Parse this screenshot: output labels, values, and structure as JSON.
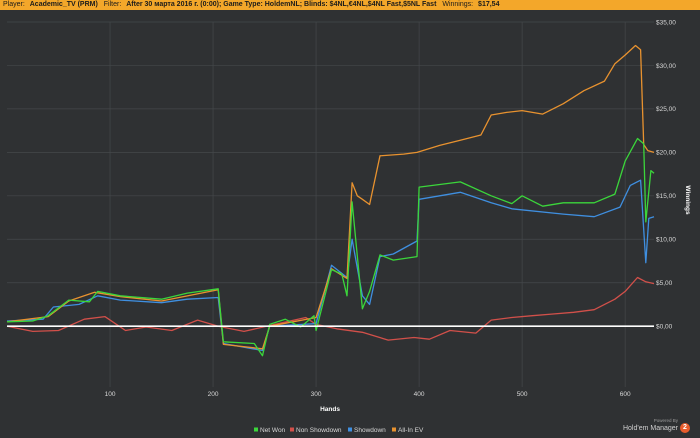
{
  "header": {
    "player_label": "Player:",
    "player_value": "Academic_TV (PRM)",
    "filter_label": "Filter:",
    "filter_value": "After 30 марта 2016 г. (0:00); Game Type: HoldemNL; Blinds: $4NL,€4NL,$4NL Fast,$5NL Fast",
    "winnings_label": "Winnings:",
    "winnings_value": "$17,54"
  },
  "brand": {
    "powered_by": "Powered By",
    "name": "Hold'em Manager",
    "badge": "2"
  },
  "colors": {
    "background": "#2f3133",
    "header": "#f3a72a",
    "grid": "#45484b",
    "net_won": "#3bd63b",
    "non_showdown": "#d2504a",
    "showdown": "#3f8fe0",
    "all_in_ev": "#e8922f",
    "zero_line": "#ffffff"
  },
  "chart_data": {
    "type": "line",
    "xlabel": "Hands",
    "ylabel": "Winnings",
    "xlim": [
      0,
      628
    ],
    "ylim": [
      -7,
      35
    ],
    "x_ticks": [
      100,
      200,
      300,
      400,
      500,
      600
    ],
    "y_ticks": [
      {
        "value": 0,
        "label": "$0,00"
      },
      {
        "value": 5,
        "label": "$5,00"
      },
      {
        "value": 10,
        "label": "$10,00"
      },
      {
        "value": 15,
        "label": "$15,00"
      },
      {
        "value": 20,
        "label": "$20,00"
      },
      {
        "value": 25,
        "label": "$25,00"
      },
      {
        "value": 30,
        "label": "$30,00"
      },
      {
        "value": 35,
        "label": "$35,00"
      }
    ],
    "legend_position": "bottom-center",
    "grid": true,
    "series": [
      {
        "name": "Net Won",
        "color": "#3bd63b",
        "points": [
          [
            0,
            0.5
          ],
          [
            25,
            0.6
          ],
          [
            40,
            1.2
          ],
          [
            60,
            3.0
          ],
          [
            80,
            2.8
          ],
          [
            88,
            4.0
          ],
          [
            110,
            3.5
          ],
          [
            150,
            3.1
          ],
          [
            175,
            3.8
          ],
          [
            205,
            4.3
          ],
          [
            210,
            -1.8
          ],
          [
            240,
            -2.0
          ],
          [
            248,
            -3.4
          ],
          [
            255,
            0.2
          ],
          [
            270,
            0.8
          ],
          [
            285,
            -0.1
          ],
          [
            298,
            1.2
          ],
          [
            300,
            -0.5
          ],
          [
            315,
            6.5
          ],
          [
            325,
            6.0
          ],
          [
            330,
            3.5
          ],
          [
            335,
            14.3
          ],
          [
            345,
            2.0
          ],
          [
            352,
            4.0
          ],
          [
            362,
            8.2
          ],
          [
            375,
            7.6
          ],
          [
            398,
            8.0
          ],
          [
            400,
            16.0
          ],
          [
            440,
            16.6
          ],
          [
            470,
            15.0
          ],
          [
            490,
            14.1
          ],
          [
            500,
            15.0
          ],
          [
            520,
            13.8
          ],
          [
            540,
            14.2
          ],
          [
            570,
            14.2
          ],
          [
            590,
            15.2
          ],
          [
            600,
            19.0
          ],
          [
            612,
            21.6
          ],
          [
            618,
            21.0
          ],
          [
            620,
            12.0
          ],
          [
            625,
            17.9
          ],
          [
            628,
            17.6
          ]
        ]
      },
      {
        "name": "Non Showdown",
        "color": "#d2504a",
        "points": [
          [
            0,
            0.0
          ],
          [
            25,
            -0.6
          ],
          [
            50,
            -0.5
          ],
          [
            75,
            0.8
          ],
          [
            95,
            1.1
          ],
          [
            115,
            -0.5
          ],
          [
            135,
            -0.1
          ],
          [
            160,
            -0.5
          ],
          [
            185,
            0.7
          ],
          [
            205,
            0.0
          ],
          [
            230,
            -0.6
          ],
          [
            260,
            0.2
          ],
          [
            290,
            1.0
          ],
          [
            300,
            0.2
          ],
          [
            320,
            -0.3
          ],
          [
            345,
            -0.7
          ],
          [
            370,
            -1.6
          ],
          [
            395,
            -1.3
          ],
          [
            410,
            -1.5
          ],
          [
            430,
            -0.5
          ],
          [
            455,
            -0.8
          ],
          [
            470,
            0.7
          ],
          [
            490,
            1.0
          ],
          [
            510,
            1.2
          ],
          [
            530,
            1.4
          ],
          [
            550,
            1.6
          ],
          [
            570,
            1.9
          ],
          [
            590,
            3.1
          ],
          [
            600,
            4.0
          ],
          [
            612,
            5.6
          ],
          [
            620,
            5.1
          ],
          [
            628,
            4.9
          ]
        ]
      },
      {
        "name": "Showdown",
        "color": "#3f8fe0",
        "points": [
          [
            0,
            0.6
          ],
          [
            35,
            0.8
          ],
          [
            45,
            2.2
          ],
          [
            70,
            2.5
          ],
          [
            88,
            3.5
          ],
          [
            110,
            3.0
          ],
          [
            150,
            2.7
          ],
          [
            175,
            3.1
          ],
          [
            205,
            3.3
          ],
          [
            210,
            -2.0
          ],
          [
            248,
            -2.8
          ],
          [
            255,
            0.0
          ],
          [
            300,
            0.3
          ],
          [
            315,
            7.0
          ],
          [
            330,
            5.6
          ],
          [
            335,
            10.0
          ],
          [
            345,
            3.5
          ],
          [
            352,
            2.5
          ],
          [
            362,
            8.0
          ],
          [
            375,
            8.3
          ],
          [
            398,
            9.8
          ],
          [
            400,
            14.6
          ],
          [
            440,
            15.4
          ],
          [
            470,
            14.2
          ],
          [
            490,
            13.5
          ],
          [
            540,
            12.9
          ],
          [
            570,
            12.6
          ],
          [
            595,
            13.7
          ],
          [
            605,
            16.2
          ],
          [
            615,
            16.8
          ],
          [
            620,
            7.3
          ],
          [
            623,
            12.4
          ],
          [
            628,
            12.6
          ]
        ]
      },
      {
        "name": "All-In EV",
        "color": "#e8922f",
        "points": [
          [
            0,
            0.5
          ],
          [
            40,
            1.1
          ],
          [
            60,
            2.9
          ],
          [
            85,
            3.9
          ],
          [
            110,
            3.4
          ],
          [
            150,
            2.9
          ],
          [
            180,
            3.6
          ],
          [
            205,
            4.2
          ],
          [
            210,
            -2.1
          ],
          [
            248,
            -2.6
          ],
          [
            255,
            0.0
          ],
          [
            300,
            1.0
          ],
          [
            315,
            6.6
          ],
          [
            330,
            5.5
          ],
          [
            335,
            16.5
          ],
          [
            340,
            15.0
          ],
          [
            345,
            14.6
          ],
          [
            352,
            14.0
          ],
          [
            362,
            19.6
          ],
          [
            385,
            19.8
          ],
          [
            398,
            20.0
          ],
          [
            420,
            20.8
          ],
          [
            440,
            21.4
          ],
          [
            460,
            22.0
          ],
          [
            470,
            24.3
          ],
          [
            485,
            24.6
          ],
          [
            500,
            24.8
          ],
          [
            520,
            24.4
          ],
          [
            540,
            25.6
          ],
          [
            560,
            27.1
          ],
          [
            580,
            28.2
          ],
          [
            590,
            30.2
          ],
          [
            600,
            31.2
          ],
          [
            610,
            32.3
          ],
          [
            615,
            31.8
          ],
          [
            618,
            20.9
          ],
          [
            622,
            20.2
          ],
          [
            628,
            20.0
          ]
        ]
      }
    ]
  }
}
